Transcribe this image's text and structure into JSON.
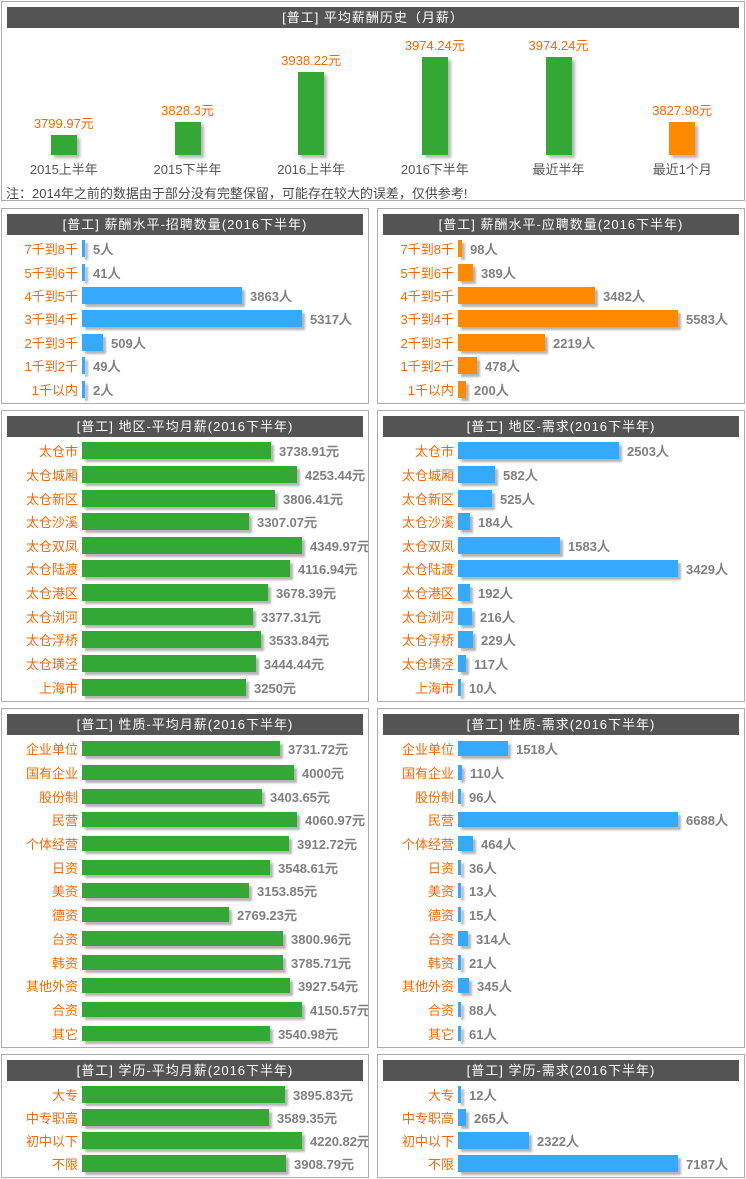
{
  "colors": {
    "green": "#34A834",
    "blue": "#35A9FC",
    "orange_bar": "#FF8A00",
    "label_orange": "#FF6600",
    "value_gray": "#7F7F7F",
    "title_bar_bg": "#545454",
    "title_text": "#FFFFFF",
    "panel_border": "#ABABAB",
    "note_text": "#4A4A4A",
    "axis_label_gray": "#555555"
  },
  "chart_data": [
    {
      "id": "avg-salary-history",
      "type": "bar",
      "orientation": "vertical",
      "title": "[普工] 平均薪酬历史（月薪）",
      "unit": "元",
      "categories": [
        "2015上半年",
        "2015下半年",
        "2016上半年",
        "2016下半年",
        "最近半年",
        "最近1个月"
      ],
      "values": [
        3799.97,
        3828.3,
        3938.22,
        3974.24,
        3974.24,
        3827.98
      ],
      "bar_colors": [
        "green",
        "green",
        "green",
        "green",
        "green",
        "orange_bar"
      ],
      "value_labels_visible": true,
      "grid": "off",
      "legend": "none",
      "note": "注：2014年之前的数据由于部分没有完整保留，可能存在较大的误差，仅供参考!"
    },
    {
      "id": "salary-level-recruit-count",
      "type": "bar",
      "orientation": "horizontal",
      "title": "[普工] 薪酬水平-招聘数量(2016下半年)",
      "unit": "人",
      "bar_color": "blue",
      "categories": [
        "7千到8千",
        "5千到6千",
        "4千到5千",
        "3千到4千",
        "2千到3千",
        "1千到2千",
        "1千以内"
      ],
      "values": [
        5,
        41,
        3863,
        5317,
        509,
        49,
        2
      ],
      "grid": "off",
      "legend": "none"
    },
    {
      "id": "salary-level-applicant-count",
      "type": "bar",
      "orientation": "horizontal",
      "title": "[普工] 薪酬水平-应聘数量(2016下半年)",
      "unit": "人",
      "bar_color": "orange_bar",
      "categories": [
        "7千到8千",
        "5千到6千",
        "4千到5千",
        "3千到4千",
        "2千到3千",
        "1千到2千",
        "1千以内"
      ],
      "values": [
        98,
        389,
        3482,
        5583,
        2219,
        478,
        200
      ],
      "grid": "off",
      "legend": "none"
    },
    {
      "id": "region-avg-salary",
      "type": "bar",
      "orientation": "horizontal",
      "title": "[普工] 地区-平均月薪(2016下半年)",
      "unit": "元",
      "bar_color": "green",
      "categories": [
        "太仓市",
        "太仓城厢",
        "太仓新区",
        "太仓沙溪",
        "太仓双凤",
        "太仓陆渡",
        "太仓港区",
        "太仓浏河",
        "太仓浮桥",
        "太仓璜泾",
        "上海市"
      ],
      "values": [
        3738.91,
        4253.44,
        3806.41,
        3307.07,
        4349.97,
        4116.94,
        3678.39,
        3377.31,
        3533.84,
        3444.44,
        3250
      ],
      "grid": "off",
      "legend": "none"
    },
    {
      "id": "region-demand",
      "type": "bar",
      "orientation": "horizontal",
      "title": "[普工] 地区-需求(2016下半年)",
      "unit": "人",
      "bar_color": "blue",
      "categories": [
        "太仓市",
        "太仓城厢",
        "太仓新区",
        "太仓沙溪",
        "太仓双凤",
        "太仓陆渡",
        "太仓港区",
        "太仓浏河",
        "太仓浮桥",
        "太仓璜泾",
        "上海市"
      ],
      "values": [
        2503,
        582,
        525,
        184,
        1583,
        3429,
        192,
        216,
        229,
        117,
        10
      ],
      "grid": "off",
      "legend": "none"
    },
    {
      "id": "nature-avg-salary",
      "type": "bar",
      "orientation": "horizontal",
      "title": "[普工] 性质-平均月薪(2016下半年)",
      "unit": "元",
      "bar_color": "green",
      "categories": [
        "企业单位",
        "国有企业",
        "股份制",
        "民营",
        "个体经营",
        "日资",
        "美资",
        "德资",
        "台资",
        "韩资",
        "其他外资",
        "合资",
        "其它"
      ],
      "values": [
        3731.72,
        4000,
        3403.65,
        4060.97,
        3912.72,
        3548.61,
        3153.85,
        2769.23,
        3800.96,
        3785.71,
        3927.54,
        4150.57,
        3540.98
      ],
      "grid": "off",
      "legend": "none"
    },
    {
      "id": "nature-demand",
      "type": "bar",
      "orientation": "horizontal",
      "title": "[普工] 性质-需求(2016下半年)",
      "unit": "人",
      "bar_color": "blue",
      "categories": [
        "企业单位",
        "国有企业",
        "股份制",
        "民营",
        "个体经营",
        "日资",
        "美资",
        "德资",
        "台资",
        "韩资",
        "其他外资",
        "合资",
        "其它"
      ],
      "values": [
        1518,
        110,
        96,
        6688,
        464,
        36,
        13,
        15,
        314,
        21,
        345,
        88,
        61
      ],
      "grid": "off",
      "legend": "none"
    },
    {
      "id": "education-avg-salary",
      "type": "bar",
      "orientation": "horizontal",
      "title": "[普工] 学历-平均月薪(2016下半年)",
      "unit": "元",
      "bar_color": "green",
      "categories": [
        "大专",
        "中专职高",
        "初中以下",
        "不限"
      ],
      "values": [
        3895.83,
        3589.35,
        4220.82,
        3908.79
      ],
      "grid": "off",
      "legend": "none"
    },
    {
      "id": "education-demand",
      "type": "bar",
      "orientation": "horizontal",
      "title": "[普工] 学历-需求(2016下半年)",
      "unit": "人",
      "bar_color": "blue",
      "categories": [
        "大专",
        "中专职高",
        "初中以下",
        "不限"
      ],
      "values": [
        12,
        265,
        2322,
        7187
      ],
      "grid": "off",
      "legend": "none"
    }
  ]
}
